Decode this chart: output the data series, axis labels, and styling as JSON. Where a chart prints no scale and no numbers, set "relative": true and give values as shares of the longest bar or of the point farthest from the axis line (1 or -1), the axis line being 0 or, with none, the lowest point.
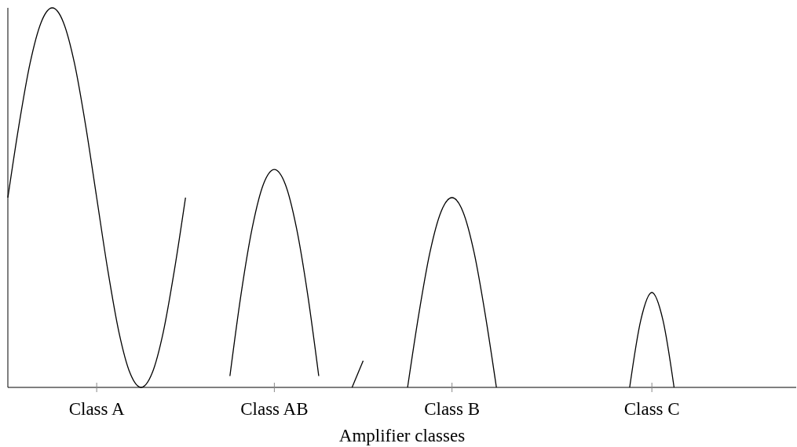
{
  "chart_data": {
    "type": "line",
    "xlabel": "Amplifier classes",
    "relative": true,
    "categories": [
      null,
      null,
      null,
      null,
      null,
      null,
      null,
      null,
      "Class A",
      null,
      null,
      null,
      null,
      null,
      null,
      null,
      null,
      null,
      null,
      null,
      null,
      null,
      null,
      null,
      "Class AB",
      null,
      null,
      null,
      null,
      null,
      null,
      null,
      null,
      null,
      null,
      null,
      null,
      null,
      null,
      null,
      "Class B",
      null,
      null,
      null,
      null,
      null,
      null,
      null,
      null,
      null,
      null,
      null,
      null,
      null,
      null,
      null,
      null,
      null,
      "Class C",
      null,
      null,
      null,
      null,
      null,
      null,
      null,
      null,
      null,
      null,
      null,
      null,
      null
    ],
    "marker": "none",
    "line_style": "solid",
    "series": [
      {
        "color": "#000000",
        "values": [
          0.5,
          0.691,
          0.854,
          0.962,
          1,
          0.962,
          0.854,
          0.691,
          0.5,
          0.309,
          0.146,
          0.038,
          0,
          0.038,
          0.146,
          0.309,
          0.5,
          null,
          null,
          null,
          null,
          null,
          null,
          null,
          null,
          null,
          null,
          null,
          null,
          null,
          null,
          null,
          null,
          null,
          null,
          null,
          null,
          null,
          null,
          null,
          null,
          null,
          null,
          null,
          null,
          null,
          null,
          null,
          null,
          null,
          null,
          null,
          null,
          null,
          null,
          null,
          null,
          null,
          null,
          null,
          null,
          null,
          null,
          null,
          null,
          null,
          null,
          null,
          null,
          null,
          null,
          null
        ]
      },
      {
        "color": "#000000",
        "values": [
          null,
          null,
          null,
          null,
          null,
          null,
          null,
          null,
          null,
          null,
          null,
          null,
          null,
          null,
          null,
          null,
          null,
          null,
          null,
          null,
          0.03,
          0.245,
          0.419,
          0.534,
          0.574,
          0.534,
          0.419,
          0.245,
          0.03,
          null,
          null,
          null,
          null,
          null,
          null,
          null,
          null,
          null,
          null,
          null,
          null,
          null,
          null,
          null,
          null,
          null,
          null,
          null,
          null,
          null,
          null,
          null,
          null,
          null,
          null,
          null,
          null,
          null,
          null,
          null,
          null,
          null,
          null,
          null,
          null,
          null,
          null,
          null,
          null,
          null,
          null,
          null
        ]
      },
      {
        "color": "#000000",
        "values": [
          null,
          null,
          null,
          null,
          null,
          null,
          null,
          null,
          null,
          null,
          null,
          null,
          null,
          null,
          null,
          null,
          null,
          null,
          null,
          null,
          null,
          null,
          null,
          null,
          null,
          null,
          null,
          null,
          null,
          null,
          null,
          0,
          0.07,
          null,
          null,
          null,
          null,
          null,
          null,
          null,
          null,
          null,
          null,
          null,
          null,
          null,
          null,
          null,
          null,
          null,
          null,
          null,
          null,
          null,
          null,
          null,
          null,
          null,
          null,
          null,
          null,
          null,
          null,
          null,
          null,
          null,
          null,
          null,
          null,
          null,
          null,
          null
        ]
      },
      {
        "color": "#000000",
        "values": [
          null,
          null,
          null,
          null,
          null,
          null,
          null,
          null,
          null,
          null,
          null,
          null,
          null,
          null,
          null,
          null,
          null,
          null,
          null,
          null,
          null,
          null,
          null,
          null,
          null,
          null,
          null,
          null,
          null,
          null,
          null,
          null,
          null,
          null,
          null,
          null,
          0,
          0.191,
          0.354,
          0.462,
          0.5,
          0.462,
          0.354,
          0.191,
          0,
          null,
          null,
          null,
          null,
          null,
          null,
          null,
          null,
          null,
          null,
          null,
          null,
          null,
          null,
          null,
          null,
          null,
          null,
          null,
          null,
          null,
          null,
          null,
          null,
          null,
          null,
          null
        ]
      },
      {
        "color": "#000000",
        "values": [
          null,
          null,
          null,
          null,
          null,
          null,
          null,
          null,
          null,
          null,
          null,
          null,
          null,
          null,
          null,
          null,
          null,
          null,
          null,
          null,
          null,
          null,
          null,
          null,
          null,
          null,
          null,
          null,
          null,
          null,
          null,
          null,
          null,
          null,
          null,
          null,
          null,
          null,
          null,
          null,
          null,
          null,
          null,
          null,
          null,
          null,
          null,
          null,
          null,
          null,
          null,
          null,
          null,
          null,
          null,
          null,
          0,
          0.177,
          0.25,
          0.177,
          0,
          null,
          null,
          null,
          null,
          null,
          null,
          null,
          null,
          null,
          null,
          null
        ]
      }
    ]
  }
}
